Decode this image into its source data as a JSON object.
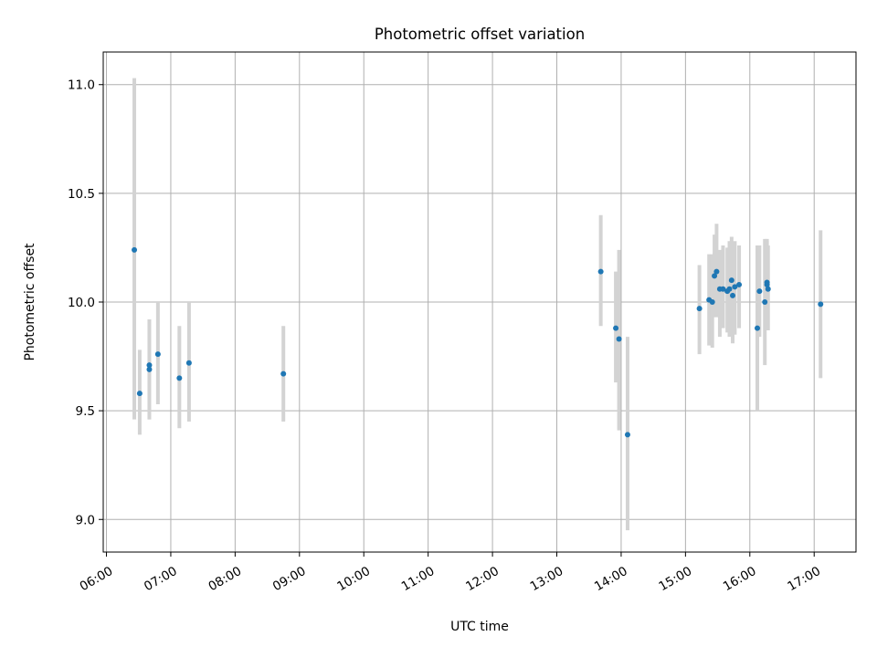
{
  "chart_data": {
    "type": "scatter",
    "title": "Photometric offset variation",
    "xlabel": "UTC time",
    "ylabel": "Photometric offset",
    "x_axis": "time of day (hours)",
    "xlim": [
      5.95,
      17.65
    ],
    "ylim": [
      8.85,
      11.15
    ],
    "xticks": [
      6,
      7,
      8,
      9,
      10,
      11,
      12,
      13,
      14,
      15,
      16,
      17
    ],
    "xtick_labels": [
      "06:00",
      "07:00",
      "08:00",
      "09:00",
      "10:00",
      "11:00",
      "12:00",
      "13:00",
      "14:00",
      "15:00",
      "16:00",
      "17:00"
    ],
    "yticks": [
      9.0,
      9.5,
      10.0,
      10.5,
      11.0
    ],
    "ytick_labels": [
      "9.0",
      "9.5",
      "10.0",
      "10.5",
      "11.0"
    ],
    "grid": true,
    "series": [
      {
        "color": "#1f77b4",
        "errorbar_color": "#d3d3d3",
        "points": [
          {
            "time": "06:26",
            "y": 10.24,
            "yerr_low": 9.46,
            "yerr_high": 11.03
          },
          {
            "time": "06:31",
            "y": 9.58,
            "yerr_low": 9.39,
            "yerr_high": 9.78
          },
          {
            "time": "06:40",
            "y": 9.71,
            "yerr_low": 9.46,
            "yerr_high": 9.92
          },
          {
            "time": "06:40",
            "y": 9.69,
            "yerr_low": 9.46,
            "yerr_high": 9.92
          },
          {
            "time": "06:48",
            "y": 9.76,
            "yerr_low": 9.53,
            "yerr_high": 10.0
          },
          {
            "time": "07:08",
            "y": 9.65,
            "yerr_low": 9.42,
            "yerr_high": 9.89
          },
          {
            "time": "07:17",
            "y": 9.72,
            "yerr_low": 9.45,
            "yerr_high": 10.0
          },
          {
            "time": "08:45",
            "y": 9.67,
            "yerr_low": 9.45,
            "yerr_high": 9.89
          },
          {
            "time": "13:41",
            "y": 10.14,
            "yerr_low": 9.89,
            "yerr_high": 10.4
          },
          {
            "time": "13:55",
            "y": 9.88,
            "yerr_low": 9.63,
            "yerr_high": 10.14
          },
          {
            "time": "13:58",
            "y": 9.83,
            "yerr_low": 9.41,
            "yerr_high": 10.24
          },
          {
            "time": "14:06",
            "y": 9.39,
            "yerr_low": 8.95,
            "yerr_high": 9.84
          },
          {
            "time": "15:13",
            "y": 9.97,
            "yerr_low": 9.76,
            "yerr_high": 10.17
          },
          {
            "time": "15:22",
            "y": 10.01,
            "yerr_low": 9.8,
            "yerr_high": 10.22
          },
          {
            "time": "15:25",
            "y": 10.0,
            "yerr_low": 9.79,
            "yerr_high": 10.22
          },
          {
            "time": "15:27",
            "y": 10.12,
            "yerr_low": 9.93,
            "yerr_high": 10.31
          },
          {
            "time": "15:29",
            "y": 10.14,
            "yerr_low": 9.93,
            "yerr_high": 10.36
          },
          {
            "time": "15:32",
            "y": 10.06,
            "yerr_low": 9.84,
            "yerr_high": 10.24
          },
          {
            "time": "15:35",
            "y": 10.06,
            "yerr_low": 9.88,
            "yerr_high": 10.26
          },
          {
            "time": "15:39",
            "y": 10.05,
            "yerr_low": 9.86,
            "yerr_high": 10.25
          },
          {
            "time": "15:41",
            "y": 10.06,
            "yerr_low": 9.84,
            "yerr_high": 10.28
          },
          {
            "time": "15:43",
            "y": 10.1,
            "yerr_low": 9.88,
            "yerr_high": 10.3
          },
          {
            "time": "15:44",
            "y": 10.03,
            "yerr_low": 9.81,
            "yerr_high": 10.25
          },
          {
            "time": "15:46",
            "y": 10.07,
            "yerr_low": 9.85,
            "yerr_high": 10.28
          },
          {
            "time": "15:50",
            "y": 10.08,
            "yerr_low": 9.88,
            "yerr_high": 10.26
          },
          {
            "time": "16:07",
            "y": 9.88,
            "yerr_low": 9.5,
            "yerr_high": 10.26
          },
          {
            "time": "16:09",
            "y": 10.05,
            "yerr_low": 9.84,
            "yerr_high": 10.26
          },
          {
            "time": "16:14",
            "y": 10.0,
            "yerr_low": 9.71,
            "yerr_high": 10.29
          },
          {
            "time": "16:16",
            "y": 10.08,
            "yerr_low": 9.87,
            "yerr_high": 10.29
          },
          {
            "time": "16:16",
            "y": 10.09,
            "yerr_low": 9.88,
            "yerr_high": 10.28
          },
          {
            "time": "16:17",
            "y": 10.06,
            "yerr_low": 9.87,
            "yerr_high": 10.26
          },
          {
            "time": "17:06",
            "y": 9.99,
            "yerr_low": 9.65,
            "yerr_high": 10.33
          }
        ]
      }
    ]
  }
}
